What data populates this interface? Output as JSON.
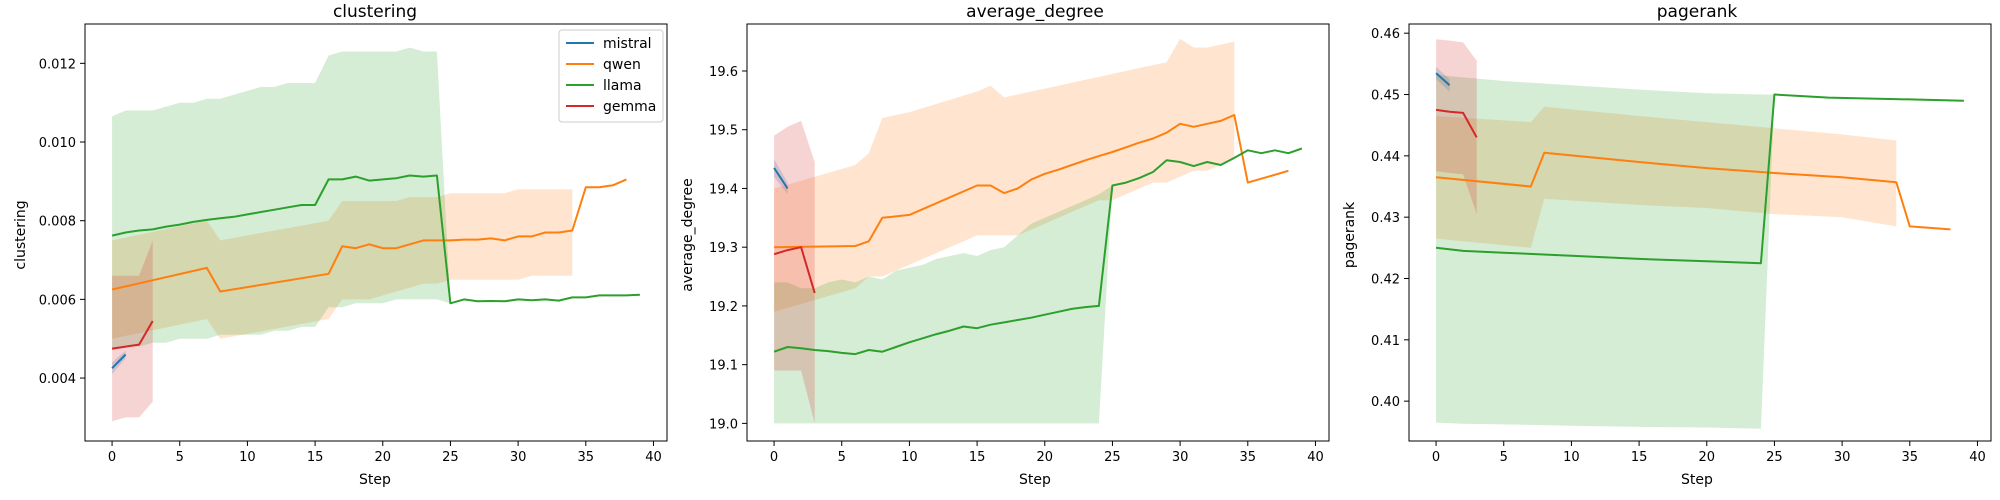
{
  "figure": {
    "xlabel": "Step"
  },
  "legend": {
    "location": "upper right",
    "panel": 0,
    "entries": [
      {
        "name": "mistral",
        "color": "#1f77b4"
      },
      {
        "name": "qwen",
        "color": "#ff7f0e"
      },
      {
        "name": "llama",
        "color": "#2ca02c"
      },
      {
        "name": "gemma",
        "color": "#d62728"
      }
    ]
  },
  "chart_data": [
    {
      "type": "line",
      "title": "clustering",
      "xlabel": "Step",
      "ylabel": "clustering",
      "xlim": [
        -2,
        41
      ],
      "ylim": [
        0.0024,
        0.013
      ],
      "xticks": [
        0,
        5,
        10,
        15,
        20,
        25,
        30,
        35,
        40
      ],
      "xtick_labels": [
        "0",
        "5",
        "10",
        "15",
        "20",
        "25",
        "30",
        "35",
        "40"
      ],
      "yticks": [
        0.004,
        0.006,
        0.008,
        0.01,
        0.012
      ],
      "ytick_labels": [
        "0.004",
        "0.006",
        "0.008",
        "0.010",
        "0.012"
      ],
      "grid": false,
      "series": [
        {
          "name": "mistral",
          "color": "#1f77b4",
          "x": [
            0,
            1
          ],
          "y": [
            0.00425,
            0.0046
          ],
          "band_low": [
            0.0041,
            0.0045
          ],
          "band_high": [
            0.0044,
            0.0047
          ]
        },
        {
          "name": "qwen",
          "color": "#ff7f0e",
          "x": [
            0,
            7,
            8,
            16,
            17,
            18,
            19,
            20,
            21,
            22,
            23,
            24,
            25,
            26,
            27,
            28,
            29,
            30,
            31,
            32,
            33,
            34,
            35,
            36,
            37,
            38
          ],
          "y": [
            0.00625,
            0.0068,
            0.0062,
            0.00665,
            0.00735,
            0.0073,
            0.0074,
            0.0073,
            0.0073,
            0.0074,
            0.0075,
            0.0075,
            0.0075,
            0.00752,
            0.00752,
            0.00755,
            0.0075,
            0.0076,
            0.0076,
            0.0077,
            0.0077,
            0.00775,
            0.00885,
            0.00885,
            0.0089,
            0.00905
          ],
          "band_low": [
            0.005,
            0.0055,
            0.005,
            0.0055,
            0.006,
            0.006,
            0.006,
            0.0061,
            0.0062,
            0.0063,
            0.0064,
            0.0064,
            0.0065,
            0.0065,
            0.0065,
            0.0065,
            0.0065,
            0.0065,
            0.0066,
            0.0066,
            0.0066,
            0.0066
          ],
          "band_high": [
            0.0075,
            0.008,
            0.0075,
            0.008,
            0.0085,
            0.0085,
            0.0085,
            0.0085,
            0.0085,
            0.0086,
            0.0086,
            0.0086,
            0.0087,
            0.0087,
            0.0087,
            0.0087,
            0.0087,
            0.0088,
            0.0088,
            0.0088,
            0.0088,
            0.0088
          ]
        },
        {
          "name": "llama",
          "color": "#2ca02c",
          "x": [
            0,
            1,
            2,
            3,
            4,
            5,
            6,
            7,
            8,
            9,
            10,
            11,
            12,
            13,
            14,
            15,
            16,
            17,
            18,
            19,
            20,
            21,
            22,
            23,
            24,
            25,
            26,
            27,
            28,
            29,
            30,
            31,
            32,
            33,
            34,
            35,
            36,
            37,
            38,
            39
          ],
          "y": [
            0.00762,
            0.0077,
            0.00775,
            0.00778,
            0.00785,
            0.0079,
            0.00797,
            0.00802,
            0.00806,
            0.0081,
            0.00816,
            0.00822,
            0.00828,
            0.00834,
            0.0084,
            0.0084,
            0.00905,
            0.00905,
            0.00912,
            0.00902,
            0.00905,
            0.00908,
            0.00915,
            0.00912,
            0.00915,
            0.0059,
            0.006,
            0.00595,
            0.00596,
            0.00595,
            0.006,
            0.00598,
            0.006,
            0.00597,
            0.00605,
            0.00605,
            0.0061,
            0.0061,
            0.0061,
            0.00612
          ],
          "band_low": [
            0.0047,
            0.0048,
            0.0048,
            0.0049,
            0.0049,
            0.005,
            0.005,
            0.005,
            0.0051,
            0.0051,
            0.0051,
            0.0051,
            0.0052,
            0.0052,
            0.0053,
            0.0053,
            0.0058,
            0.0058,
            0.0059,
            0.0059,
            0.0059,
            0.006,
            0.006,
            0.006,
            0.006,
            0.0059
          ],
          "band_high": [
            0.01065,
            0.0108,
            0.0108,
            0.0108,
            0.0109,
            0.011,
            0.011,
            0.0111,
            0.0111,
            0.0112,
            0.0113,
            0.0114,
            0.0114,
            0.0115,
            0.0115,
            0.0115,
            0.0122,
            0.0123,
            0.0123,
            0.0123,
            0.0123,
            0.0123,
            0.0124,
            0.0123,
            0.0123,
            0.0059
          ]
        },
        {
          "name": "gemma",
          "color": "#d62728",
          "x": [
            0,
            1,
            2,
            3
          ],
          "y": [
            0.00475,
            0.0048,
            0.00485,
            0.00545
          ],
          "band_low": [
            0.0029,
            0.003,
            0.003,
            0.0034
          ],
          "band_high": [
            0.0066,
            0.0066,
            0.0066,
            0.0075
          ]
        }
      ]
    },
    {
      "type": "line",
      "title": "average_degree",
      "xlabel": "Step",
      "ylabel": "average_degree",
      "xlim": [
        -2,
        41
      ],
      "ylim": [
        18.97,
        19.68
      ],
      "xticks": [
        0,
        5,
        10,
        15,
        20,
        25,
        30,
        35,
        40
      ],
      "xtick_labels": [
        "0",
        "5",
        "10",
        "15",
        "20",
        "25",
        "30",
        "35",
        "40"
      ],
      "yticks": [
        19.0,
        19.1,
        19.2,
        19.3,
        19.4,
        19.5,
        19.6
      ],
      "ytick_labels": [
        "19.0",
        "19.1",
        "19.2",
        "19.3",
        "19.4",
        "19.5",
        "19.6"
      ],
      "grid": false,
      "series": [
        {
          "name": "mistral",
          "color": "#1f77b4",
          "x": [
            0,
            1
          ],
          "y": [
            19.435,
            19.4
          ],
          "band_low": [
            19.42,
            19.39
          ],
          "band_high": [
            19.45,
            19.41
          ]
        },
        {
          "name": "qwen",
          "color": "#ff7f0e",
          "x": [
            0,
            6,
            7,
            8,
            10,
            15,
            16,
            17,
            18,
            19,
            20,
            21,
            22,
            23,
            24,
            25,
            26,
            27,
            28,
            29,
            30,
            31,
            32,
            33,
            34,
            35,
            38
          ],
          "y": [
            19.3,
            19.302,
            19.31,
            19.35,
            19.355,
            19.405,
            19.405,
            19.392,
            19.4,
            19.415,
            19.425,
            19.432,
            19.44,
            19.448,
            19.455,
            19.462,
            19.47,
            19.478,
            19.485,
            19.495,
            19.51,
            19.505,
            19.51,
            19.515,
            19.525,
            19.41,
            19.43
          ],
          "band_low": [
            19.19,
            19.23,
            19.25,
            19.25,
            19.27,
            19.32,
            19.32,
            19.32,
            19.32,
            19.33,
            19.34,
            19.35,
            19.36,
            19.37,
            19.38,
            19.38,
            19.39,
            19.4,
            19.41,
            19.41,
            19.42,
            19.43,
            19.43,
            19.44,
            19.45
          ],
          "band_high": [
            19.4,
            19.44,
            19.46,
            19.52,
            19.53,
            19.565,
            19.575,
            19.555,
            19.56,
            19.565,
            19.57,
            19.575,
            19.58,
            19.585,
            19.59,
            19.595,
            19.6,
            19.605,
            19.61,
            19.615,
            19.655,
            19.64,
            19.64,
            19.645,
            19.65
          ]
        },
        {
          "name": "llama",
          "color": "#2ca02c",
          "x": [
            0,
            1,
            2,
            3,
            4,
            5,
            6,
            7,
            8,
            9,
            10,
            11,
            12,
            13,
            14,
            15,
            16,
            17,
            18,
            19,
            20,
            21,
            22,
            23,
            24,
            25,
            26,
            27,
            28,
            29,
            30,
            31,
            32,
            33,
            34,
            35,
            36,
            37,
            38,
            39
          ],
          "y": [
            19.122,
            19.13,
            19.128,
            19.125,
            19.123,
            19.12,
            19.118,
            19.125,
            19.122,
            19.13,
            19.138,
            19.145,
            19.152,
            19.158,
            19.165,
            19.162,
            19.168,
            19.172,
            19.176,
            19.18,
            19.185,
            19.19,
            19.195,
            19.198,
            19.2,
            19.405,
            19.41,
            19.418,
            19.428,
            19.448,
            19.445,
            19.438,
            19.445,
            19.44,
            19.452,
            19.465,
            19.46,
            19.465,
            19.46,
            19.468
          ],
          "band_low": [
            19.0,
            19.0,
            19.0,
            19.0,
            19.0,
            19.0,
            19.0,
            19.0,
            19.0,
            19.0,
            19.0,
            19.0,
            19.0,
            19.0,
            19.0,
            19.0,
            19.0,
            19.0,
            19.0,
            19.0,
            19.0,
            19.0,
            19.0,
            19.0,
            19.0,
            19.405
          ],
          "band_high": [
            19.24,
            19.24,
            19.23,
            19.23,
            19.24,
            19.245,
            19.24,
            19.25,
            19.245,
            19.26,
            19.265,
            19.27,
            19.28,
            19.285,
            19.29,
            19.285,
            19.295,
            19.3,
            19.32,
            19.34,
            19.35,
            19.36,
            19.37,
            19.38,
            19.39,
            19.405
          ]
        },
        {
          "name": "gemma",
          "color": "#d62728",
          "x": [
            0,
            1,
            2,
            3
          ],
          "y": [
            19.288,
            19.295,
            19.3,
            19.222
          ],
          "band_low": [
            19.09,
            19.09,
            19.09,
            19.0
          ],
          "band_high": [
            19.49,
            19.505,
            19.515,
            19.445
          ]
        }
      ]
    },
    {
      "type": "line",
      "title": "pagerank",
      "xlabel": "Step",
      "ylabel": "pagerank",
      "xlim": [
        -2,
        41
      ],
      "ylim": [
        0.3935,
        0.4615
      ],
      "xticks": [
        0,
        5,
        10,
        15,
        20,
        25,
        30,
        35,
        40
      ],
      "xtick_labels": [
        "0",
        "5",
        "10",
        "15",
        "20",
        "25",
        "30",
        "35",
        "40"
      ],
      "yticks": [
        0.4,
        0.41,
        0.42,
        0.43,
        0.44,
        0.45,
        0.46
      ],
      "ytick_labels": [
        "0.40",
        "0.41",
        "0.42",
        "0.43",
        "0.44",
        "0.45",
        "0.46"
      ],
      "grid": false,
      "series": [
        {
          "name": "mistral",
          "color": "#1f77b4",
          "x": [
            0,
            1
          ],
          "y": [
            0.4535,
            0.4515
          ],
          "band_low": [
            0.4525,
            0.4505
          ],
          "band_high": [
            0.4545,
            0.4525
          ]
        },
        {
          "name": "qwen",
          "color": "#ff7f0e",
          "x": [
            0,
            7,
            8,
            15,
            20,
            25,
            30,
            34,
            35,
            38
          ],
          "y": [
            0.4365,
            0.435,
            0.4405,
            0.439,
            0.438,
            0.4372,
            0.4365,
            0.4357,
            0.4285,
            0.428
          ],
          "band_low": [
            0.4265,
            0.425,
            0.433,
            0.432,
            0.4315,
            0.4305,
            0.43,
            0.4285
          ],
          "band_high": [
            0.4465,
            0.4455,
            0.448,
            0.4465,
            0.4455,
            0.4445,
            0.4435,
            0.4425
          ]
        },
        {
          "name": "llama",
          "color": "#2ca02c",
          "x": [
            0,
            2,
            5,
            10,
            15,
            20,
            24,
            25,
            29,
            35,
            39
          ],
          "y": [
            0.425,
            0.4245,
            0.4242,
            0.4237,
            0.4232,
            0.4228,
            0.4225,
            0.45,
            0.4495,
            0.4492,
            0.449
          ],
          "band_low": [
            0.3965,
            0.3963,
            0.3962,
            0.396,
            0.3958,
            0.3957,
            0.3955,
            0.45
          ],
          "band_high": [
            0.4532,
            0.4528,
            0.4522,
            0.4515,
            0.4508,
            0.4502,
            0.45,
            0.45
          ]
        },
        {
          "name": "gemma",
          "color": "#d62728",
          "x": [
            0,
            1,
            2,
            3
          ],
          "y": [
            0.4475,
            0.4472,
            0.447,
            0.443
          ],
          "band_low": [
            0.4375,
            0.4372,
            0.437,
            0.4305
          ],
          "band_high": [
            0.459,
            0.4588,
            0.4585,
            0.4555
          ]
        }
      ]
    }
  ]
}
